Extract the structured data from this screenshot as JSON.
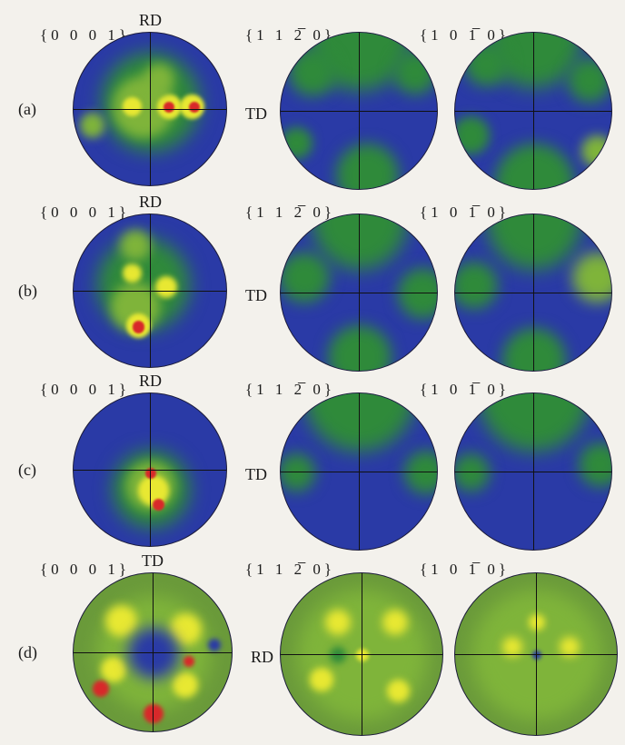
{
  "rows": [
    {
      "label": "(a)",
      "pole_labels": [
        "{0 0 0 1}",
        "{1 1 2̅ 0}",
        "{1 0 1̅ 0}"
      ],
      "top_axis": "RD",
      "side_axis": "TD",
      "style": "blue"
    },
    {
      "label": "(b)",
      "pole_labels": [
        "{0 0 0 1}",
        "{1 1 2̅ 0}",
        "{1 0 1̅ 0}"
      ],
      "top_axis": "RD",
      "side_axis": "TD",
      "style": "blue"
    },
    {
      "label": "(c)",
      "pole_labels": [
        "{0 0 0 1}",
        "{1 1 2̅ 0}",
        "{1 0 1̅ 0}"
      ],
      "top_axis": "RD",
      "side_axis": "TD",
      "style": "blue"
    },
    {
      "label": "(d)",
      "pole_labels": [
        "{0 0 0 1}",
        "{1 1 2̅ 0}",
        "{1 0 1̅ 0}"
      ],
      "top_axis": "TD",
      "side_axis": "RD",
      "style": "green"
    }
  ],
  "colors": {
    "low": "#2a3aa6",
    "mid_low": "#2f8a3a",
    "mid": "#7fb43a",
    "high": "#e8e832",
    "peak": "#d8282a",
    "green_bg": "#6a9a3a"
  }
}
